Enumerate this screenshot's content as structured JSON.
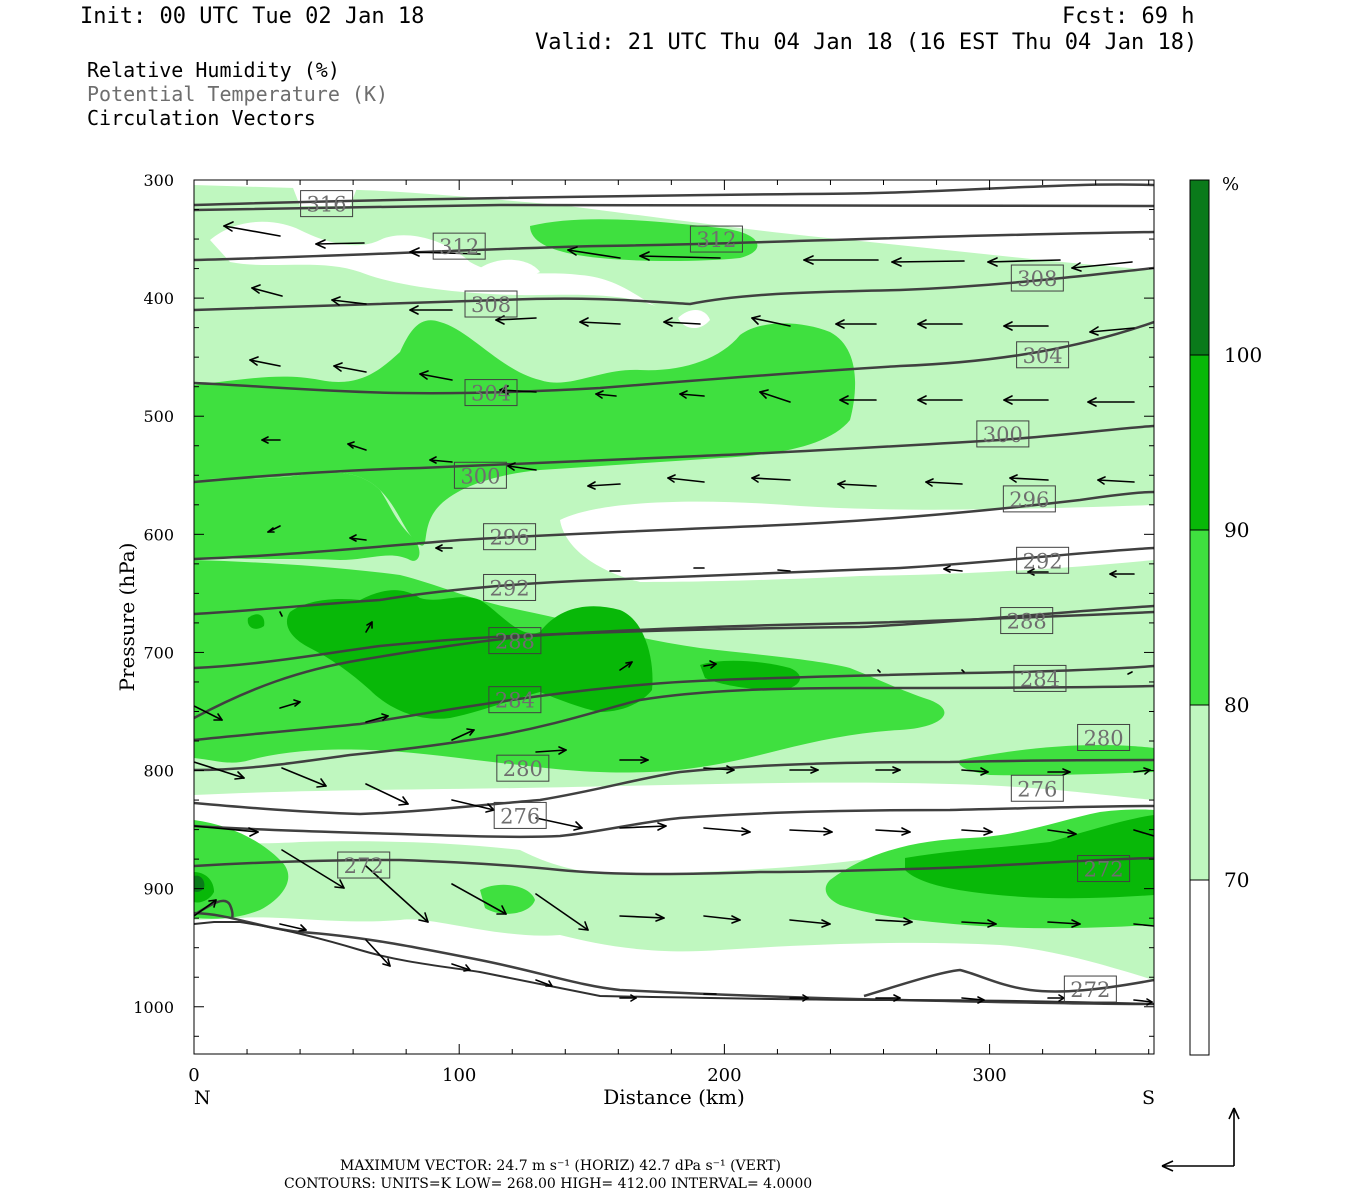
{
  "header": {
    "init": "Init: 00 UTC Tue 02 Jan 18",
    "fcst": "Fcst:   69 h",
    "valid": "Valid: 21 UTC Thu 04 Jan 18 (16 EST Thu 04 Jan 18)"
  },
  "legend_lines": {
    "rh": "Relative Humidity (%)",
    "theta": "Potential Temperature (K)",
    "vectors": "Circulation Vectors"
  },
  "colors": {
    "rh_70_80": "#bff7bf",
    "rh_80_90": "#3fe03f",
    "rh_90_100": "#08b808",
    "rh_100": "#0a7a1a",
    "isentrope": "#404040",
    "theta_text": "#6e6e6e"
  },
  "footer": {
    "max_vector": "MAXIMUM VECTOR:  24.7 m s⁻¹ (HORIZ)        42.7 dPa s⁻¹ (VERT)",
    "contours": "CONTOURS:  UNITS=K  LOW=  268.00      HIGH=  412.00       INTERVAL=    4.0000"
  },
  "chart_data": {
    "type": "cross-section",
    "title": "",
    "xlabel": "Distance (km)",
    "ylabel": "Pressure (hPa)",
    "xlim": [
      0,
      362
    ],
    "ylim": [
      1040,
      300
    ],
    "x_ticks": [
      0,
      100,
      200,
      300
    ],
    "y_ticks": [
      300,
      400,
      500,
      600,
      700,
      800,
      900,
      1000
    ],
    "x_end_labels": {
      "left": "N",
      "right": "S"
    },
    "colorbar": {
      "unit": "%",
      "levels": [
        70,
        80,
        90,
        100
      ]
    },
    "isentropes_K": [
      272,
      276,
      280,
      284,
      288,
      292,
      296,
      300,
      304,
      308,
      312,
      316
    ],
    "isentrope_labels": [
      {
        "theta": 316,
        "x": 50,
        "p": 320
      },
      {
        "theta": 312,
        "x": 100,
        "p": 356
      },
      {
        "theta": 312,
        "x": 197,
        "p": 350
      },
      {
        "theta": 308,
        "x": 112,
        "p": 405
      },
      {
        "theta": 308,
        "x": 318,
        "p": 383
      },
      {
        "theta": 304,
        "x": 112,
        "p": 480
      },
      {
        "theta": 304,
        "x": 320,
        "p": 448
      },
      {
        "theta": 300,
        "x": 108,
        "p": 550
      },
      {
        "theta": 300,
        "x": 305,
        "p": 515
      },
      {
        "theta": 296,
        "x": 119,
        "p": 602
      },
      {
        "theta": 296,
        "x": 315,
        "p": 570
      },
      {
        "theta": 292,
        "x": 119,
        "p": 645
      },
      {
        "theta": 292,
        "x": 320,
        "p": 622
      },
      {
        "theta": 288,
        "x": 121,
        "p": 690
      },
      {
        "theta": 288,
        "x": 314,
        "p": 673
      },
      {
        "theta": 284,
        "x": 121,
        "p": 740
      },
      {
        "theta": 284,
        "x": 319,
        "p": 722
      },
      {
        "theta": 280,
        "x": 124,
        "p": 798
      },
      {
        "theta": 280,
        "x": 343,
        "p": 772
      },
      {
        "theta": 276,
        "x": 123,
        "p": 838
      },
      {
        "theta": 276,
        "x": 318,
        "p": 815
      },
      {
        "theta": 272,
        "x": 64,
        "p": 880
      },
      {
        "theta": 272,
        "x": 343,
        "p": 883
      },
      {
        "theta": 272,
        "x": 338,
        "p": 985
      }
    ]
  }
}
